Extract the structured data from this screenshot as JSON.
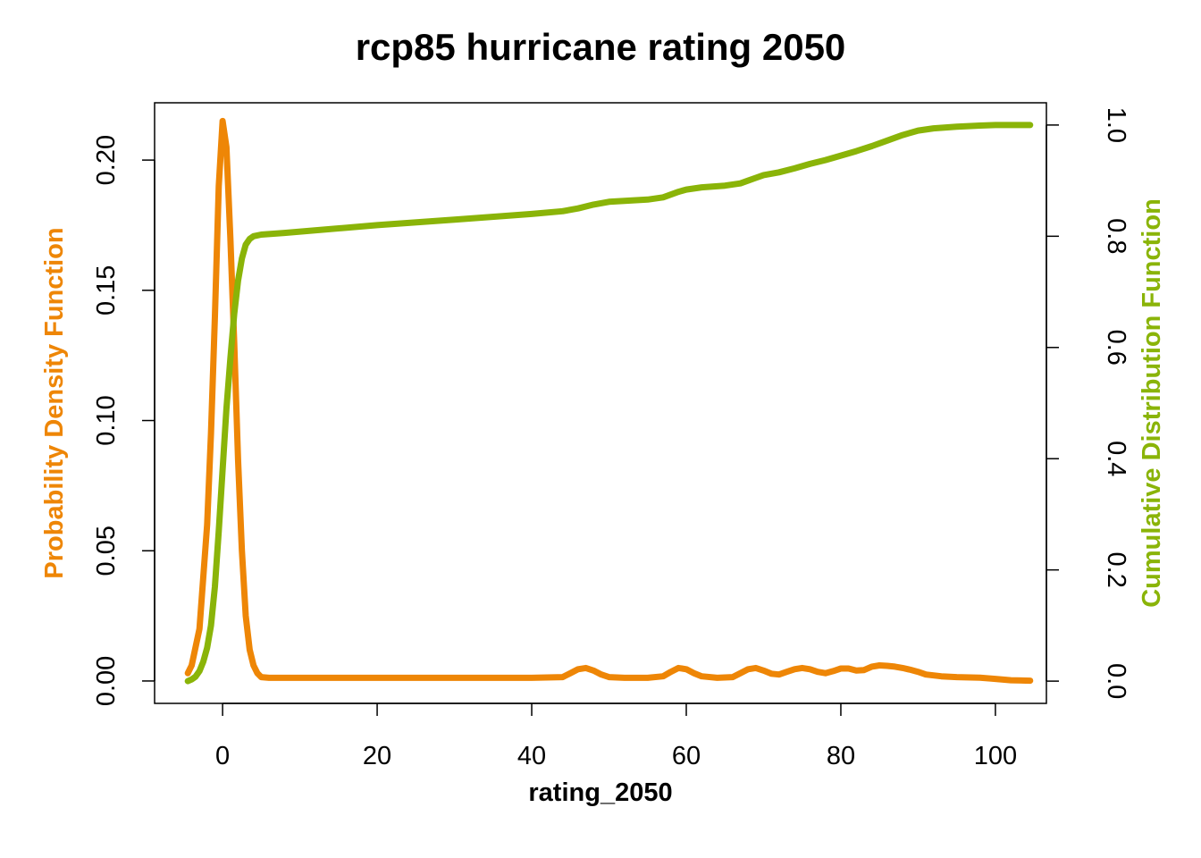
{
  "chart_data": {
    "type": "line",
    "title": "rcp85 hurricane rating 2050",
    "xlabel": "rating_2050",
    "ylabel_left": "Probability Density Function",
    "ylabel_right": "Cumulative Distribution Function",
    "xlim": [
      -8.8,
      106.6
    ],
    "ylim_left": [
      -0.0086,
      0.222
    ],
    "ylim_right": [
      -0.04,
      1.04
    ],
    "x_ticks": [
      0,
      20,
      40,
      60,
      80,
      100
    ],
    "y_ticks_left": [
      0.0,
      0.05,
      0.1,
      0.15,
      0.2
    ],
    "y_ticks_left_labels": [
      "0.00",
      "0.05",
      "0.10",
      "0.15",
      "0.20"
    ],
    "y_ticks_right": [
      0.0,
      0.2,
      0.4,
      0.6,
      0.8,
      1.0
    ],
    "y_ticks_right_labels": [
      "0.0",
      "0.2",
      "0.4",
      "0.6",
      "0.8",
      "1.0"
    ],
    "colors": {
      "pdf": "#EE8606",
      "cdf": "#8AB408"
    },
    "series": [
      {
        "axis": "left",
        "color": "#EE8606",
        "x": [
          -4.5,
          -4,
          -3,
          -2,
          -1.5,
          -1,
          -0.5,
          0,
          0.5,
          1,
          1.5,
          2,
          2.5,
          3,
          3.5,
          4,
          4.5,
          5,
          6,
          8,
          20,
          30,
          40,
          44,
          45,
          46,
          47,
          48,
          49,
          50,
          52,
          55,
          57,
          58,
          59,
          60,
          61,
          62,
          64,
          66,
          67,
          68,
          69,
          70,
          71,
          72,
          73,
          74,
          75,
          76,
          77,
          78,
          79,
          80,
          81,
          82,
          83,
          84,
          85,
          86,
          87,
          88,
          89,
          90,
          91,
          93,
          95,
          98,
          100,
          102,
          104.5
        ],
        "y": [
          0.003,
          0.006,
          0.02,
          0.06,
          0.095,
          0.14,
          0.19,
          0.215,
          0.205,
          0.17,
          0.13,
          0.085,
          0.05,
          0.025,
          0.012,
          0.006,
          0.003,
          0.0015,
          0.0012,
          0.0012,
          0.0012,
          0.0012,
          0.0012,
          0.0015,
          0.003,
          0.0045,
          0.005,
          0.004,
          0.0025,
          0.0015,
          0.0012,
          0.0012,
          0.0018,
          0.0035,
          0.005,
          0.0045,
          0.003,
          0.0018,
          0.0012,
          0.0015,
          0.003,
          0.0045,
          0.005,
          0.004,
          0.0028,
          0.0025,
          0.0035,
          0.0045,
          0.005,
          0.0045,
          0.0035,
          0.003,
          0.0038,
          0.0048,
          0.0048,
          0.004,
          0.0042,
          0.0055,
          0.006,
          0.0058,
          0.0055,
          0.005,
          0.0043,
          0.0035,
          0.0025,
          0.0018,
          0.0015,
          0.0013,
          0.0008,
          0.0003,
          0.0001
        ]
      },
      {
        "axis": "right",
        "color": "#8AB408",
        "x": [
          -4.5,
          -4,
          -3.5,
          -3,
          -2.5,
          -2,
          -1.5,
          -1,
          -0.5,
          0,
          0.5,
          1,
          1.5,
          2,
          2.5,
          3,
          3.5,
          4,
          5,
          8,
          20,
          30,
          40,
          44,
          46,
          48,
          50,
          55,
          57,
          58,
          59,
          60,
          62,
          65,
          67,
          68,
          69,
          70,
          72,
          74,
          76,
          78,
          80,
          82,
          84,
          86,
          88,
          90,
          92,
          95,
          98,
          100,
          102,
          104.5
        ],
        "y": [
          0.0,
          0.003,
          0.008,
          0.018,
          0.035,
          0.06,
          0.1,
          0.17,
          0.27,
          0.38,
          0.49,
          0.58,
          0.66,
          0.72,
          0.76,
          0.785,
          0.795,
          0.8,
          0.803,
          0.806,
          0.82,
          0.83,
          0.84,
          0.845,
          0.85,
          0.857,
          0.862,
          0.866,
          0.87,
          0.875,
          0.88,
          0.884,
          0.888,
          0.891,
          0.895,
          0.9,
          0.905,
          0.91,
          0.915,
          0.922,
          0.93,
          0.937,
          0.945,
          0.953,
          0.962,
          0.972,
          0.982,
          0.99,
          0.994,
          0.997,
          0.999,
          1.0,
          1.0,
          1.0
        ]
      }
    ]
  }
}
